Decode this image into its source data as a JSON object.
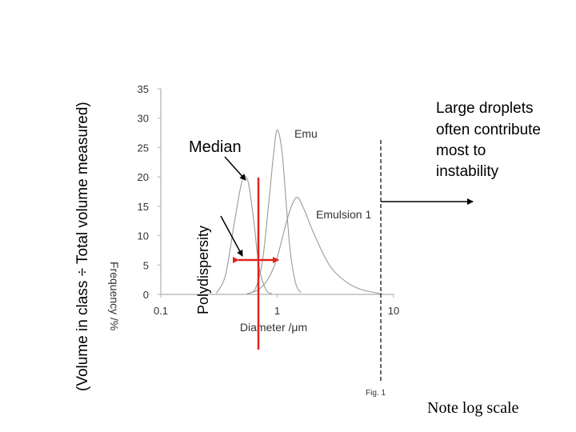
{
  "chart_data": {
    "type": "line",
    "xlabel": "Diameter /μm",
    "ylabel": "Frequency /%",
    "xscale": "log",
    "xlim": [
      0.1,
      10
    ],
    "ylim": [
      0,
      35
    ],
    "xticks": [
      "0.1",
      "1",
      "10"
    ],
    "yticks": [
      "0",
      "5",
      "10",
      "15",
      "20",
      "25",
      "30",
      "35"
    ],
    "grid": false,
    "series": [
      {
        "name": "",
        "x": [
          0.3,
          0.36,
          0.43,
          0.5,
          0.56,
          0.63,
          0.7,
          0.8,
          0.9
        ],
        "y": [
          0.2,
          3.3,
          12.4,
          19.3,
          19.3,
          12.4,
          4.5,
          0.8,
          0.1
        ]
      },
      {
        "name": "Emu",
        "x": [
          0.55,
          0.65,
          0.75,
          0.85,
          0.93,
          1.0,
          1.1,
          1.2,
          1.3,
          1.45,
          1.6
        ],
        "y": [
          0.1,
          1.0,
          5.9,
          16.0,
          23.8,
          28.0,
          24.3,
          15.0,
          7.0,
          1.7,
          0.3
        ]
      },
      {
        "name": "Emulsion 1",
        "x": [
          0.55,
          0.7,
          0.85,
          1.0,
          1.2,
          1.35,
          1.5,
          1.7,
          2.0,
          2.5,
          3.0,
          4.0,
          5.0,
          6.5,
          8.0
        ],
        "y": [
          0.1,
          0.9,
          2.9,
          6.3,
          12.3,
          15.4,
          16.5,
          14.5,
          11.0,
          6.8,
          4.2,
          2.0,
          1.0,
          0.4,
          0.1
        ]
      }
    ],
    "annotations": [
      "Emu",
      "Emulsion 1",
      "Fig. 1"
    ]
  },
  "labels": {
    "y_volume": "(Volume in class ÷ Total volume measured)",
    "median": "Median",
    "polydispersity": "Polydispersity",
    "large_droplets": [
      "Large droplets",
      "often contribute",
      "most to",
      "instability"
    ],
    "note": "Note log scale"
  },
  "colors": {
    "curve": "#9a9a9a",
    "axis": "#b0b0b0",
    "marker": "#e0241b",
    "text": "#000000"
  }
}
